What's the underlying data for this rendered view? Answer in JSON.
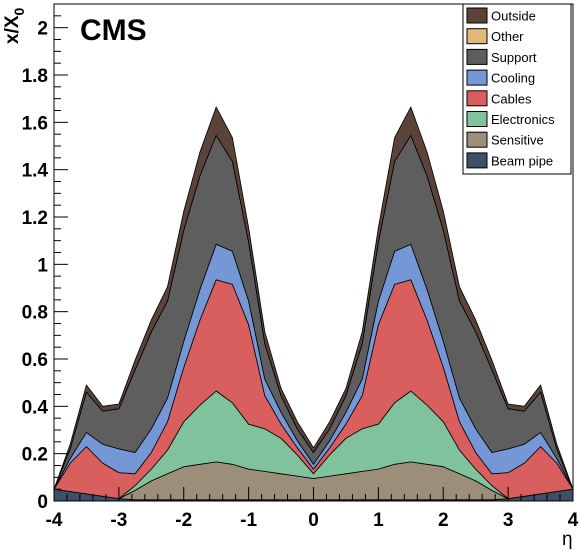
{
  "chart_data": {
    "type": "area",
    "stacked": true,
    "experiment_label": "CMS",
    "xlabel": "η",
    "ylabel": {
      "base": "x/X",
      "sub": "0"
    },
    "xlim": [
      -4,
      4
    ],
    "ylim": [
      0,
      2.1
    ],
    "x_ticks": [
      "-4",
      "-3",
      "-2",
      "-1",
      "0",
      "1",
      "2",
      "3",
      "4"
    ],
    "y_ticks": [
      "0",
      "0.2",
      "0.4",
      "0.6",
      "0.8",
      "1",
      "1.2",
      "1.4",
      "1.6",
      "1.8",
      "2"
    ],
    "grid": false,
    "legend_position": "top-right",
    "legend": [
      "Outside",
      "Other",
      "Support",
      "Cooling",
      "Cables",
      "Electronics",
      "Sensitive",
      "Beam pipe"
    ],
    "x": [
      -4.0,
      -3.75,
      -3.5,
      -3.25,
      -3.0,
      -2.75,
      -2.5,
      -2.25,
      -2.0,
      -1.75,
      -1.5,
      -1.25,
      -1.0,
      -0.75,
      -0.5,
      -0.25,
      0.0,
      0.25,
      0.5,
      0.75,
      1.0,
      1.25,
      1.5,
      1.75,
      2.0,
      2.25,
      2.5,
      2.75,
      3.0,
      3.25,
      3.5,
      3.75,
      4.0
    ],
    "series": [
      {
        "name": "Beam pipe",
        "color": "#3d5066",
        "values": [
          0.05,
          0.04,
          0.03,
          0.02,
          0.01,
          0.005,
          0.005,
          0.005,
          0.005,
          0.005,
          0.005,
          0.005,
          0.005,
          0.005,
          0.005,
          0.005,
          0.005,
          0.005,
          0.005,
          0.005,
          0.005,
          0.005,
          0.005,
          0.005,
          0.005,
          0.005,
          0.005,
          0.005,
          0.01,
          0.02,
          0.03,
          0.04,
          0.05
        ]
      },
      {
        "name": "Sensitive",
        "color": "#9c8f7a",
        "values": [
          0.0,
          0.0,
          0.0,
          0.0,
          0.0,
          0.04,
          0.08,
          0.11,
          0.14,
          0.15,
          0.16,
          0.15,
          0.13,
          0.12,
          0.11,
          0.1,
          0.09,
          0.1,
          0.11,
          0.12,
          0.13,
          0.15,
          0.16,
          0.15,
          0.14,
          0.11,
          0.08,
          0.04,
          0.0,
          0.0,
          0.0,
          0.0,
          0.0
        ]
      },
      {
        "name": "Electronics",
        "color": "#7fc29b",
        "values": [
          0.0,
          0.0,
          0.0,
          0.0,
          0.0,
          0.02,
          0.05,
          0.1,
          0.19,
          0.25,
          0.3,
          0.26,
          0.19,
          0.18,
          0.15,
          0.09,
          0.02,
          0.09,
          0.15,
          0.18,
          0.19,
          0.26,
          0.3,
          0.25,
          0.19,
          0.1,
          0.05,
          0.02,
          0.0,
          0.0,
          0.0,
          0.0,
          0.0
        ]
      },
      {
        "name": "Cables",
        "color": "#d95e5e",
        "values": [
          0.0,
          0.12,
          0.2,
          0.14,
          0.11,
          0.05,
          0.07,
          0.12,
          0.23,
          0.36,
          0.47,
          0.5,
          0.42,
          0.14,
          0.06,
          0.03,
          0.02,
          0.03,
          0.06,
          0.14,
          0.42,
          0.5,
          0.47,
          0.36,
          0.23,
          0.12,
          0.07,
          0.05,
          0.11,
          0.14,
          0.2,
          0.12,
          0.0
        ]
      },
      {
        "name": "Cooling",
        "color": "#7597d6",
        "values": [
          0.0,
          0.02,
          0.06,
          0.08,
          0.1,
          0.09,
          0.1,
          0.1,
          0.11,
          0.13,
          0.15,
          0.14,
          0.1,
          0.07,
          0.05,
          0.03,
          0.02,
          0.03,
          0.05,
          0.07,
          0.1,
          0.14,
          0.15,
          0.13,
          0.11,
          0.1,
          0.1,
          0.09,
          0.1,
          0.08,
          0.06,
          0.02,
          0.0
        ]
      },
      {
        "name": "Support",
        "color": "#5e5e5e",
        "values": [
          0.0,
          0.04,
          0.17,
          0.14,
          0.17,
          0.35,
          0.41,
          0.41,
          0.47,
          0.48,
          0.46,
          0.38,
          0.25,
          0.15,
          0.07,
          0.05,
          0.05,
          0.05,
          0.07,
          0.15,
          0.25,
          0.38,
          0.46,
          0.48,
          0.47,
          0.41,
          0.41,
          0.35,
          0.17,
          0.14,
          0.17,
          0.04,
          0.0
        ]
      },
      {
        "name": "Other",
        "color": "#e2b87a",
        "values": [
          0.0,
          0.0,
          0.0,
          0.0,
          0.0,
          0.0,
          0.0,
          0.0,
          0.0,
          0.0,
          0.0,
          0.0,
          0.0,
          0.0,
          0.0,
          0.0,
          0.0,
          0.0,
          0.0,
          0.0,
          0.0,
          0.0,
          0.0,
          0.0,
          0.0,
          0.0,
          0.0,
          0.0,
          0.0,
          0.0,
          0.0,
          0.0,
          0.0
        ]
      },
      {
        "name": "Outside",
        "color": "#5a4339",
        "values": [
          0.0,
          0.02,
          0.03,
          0.02,
          0.02,
          0.04,
          0.05,
          0.06,
          0.08,
          0.1,
          0.12,
          0.1,
          0.06,
          0.05,
          0.03,
          0.03,
          0.02,
          0.03,
          0.03,
          0.05,
          0.06,
          0.1,
          0.12,
          0.1,
          0.08,
          0.06,
          0.05,
          0.04,
          0.02,
          0.02,
          0.03,
          0.02,
          0.0
        ]
      }
    ]
  }
}
